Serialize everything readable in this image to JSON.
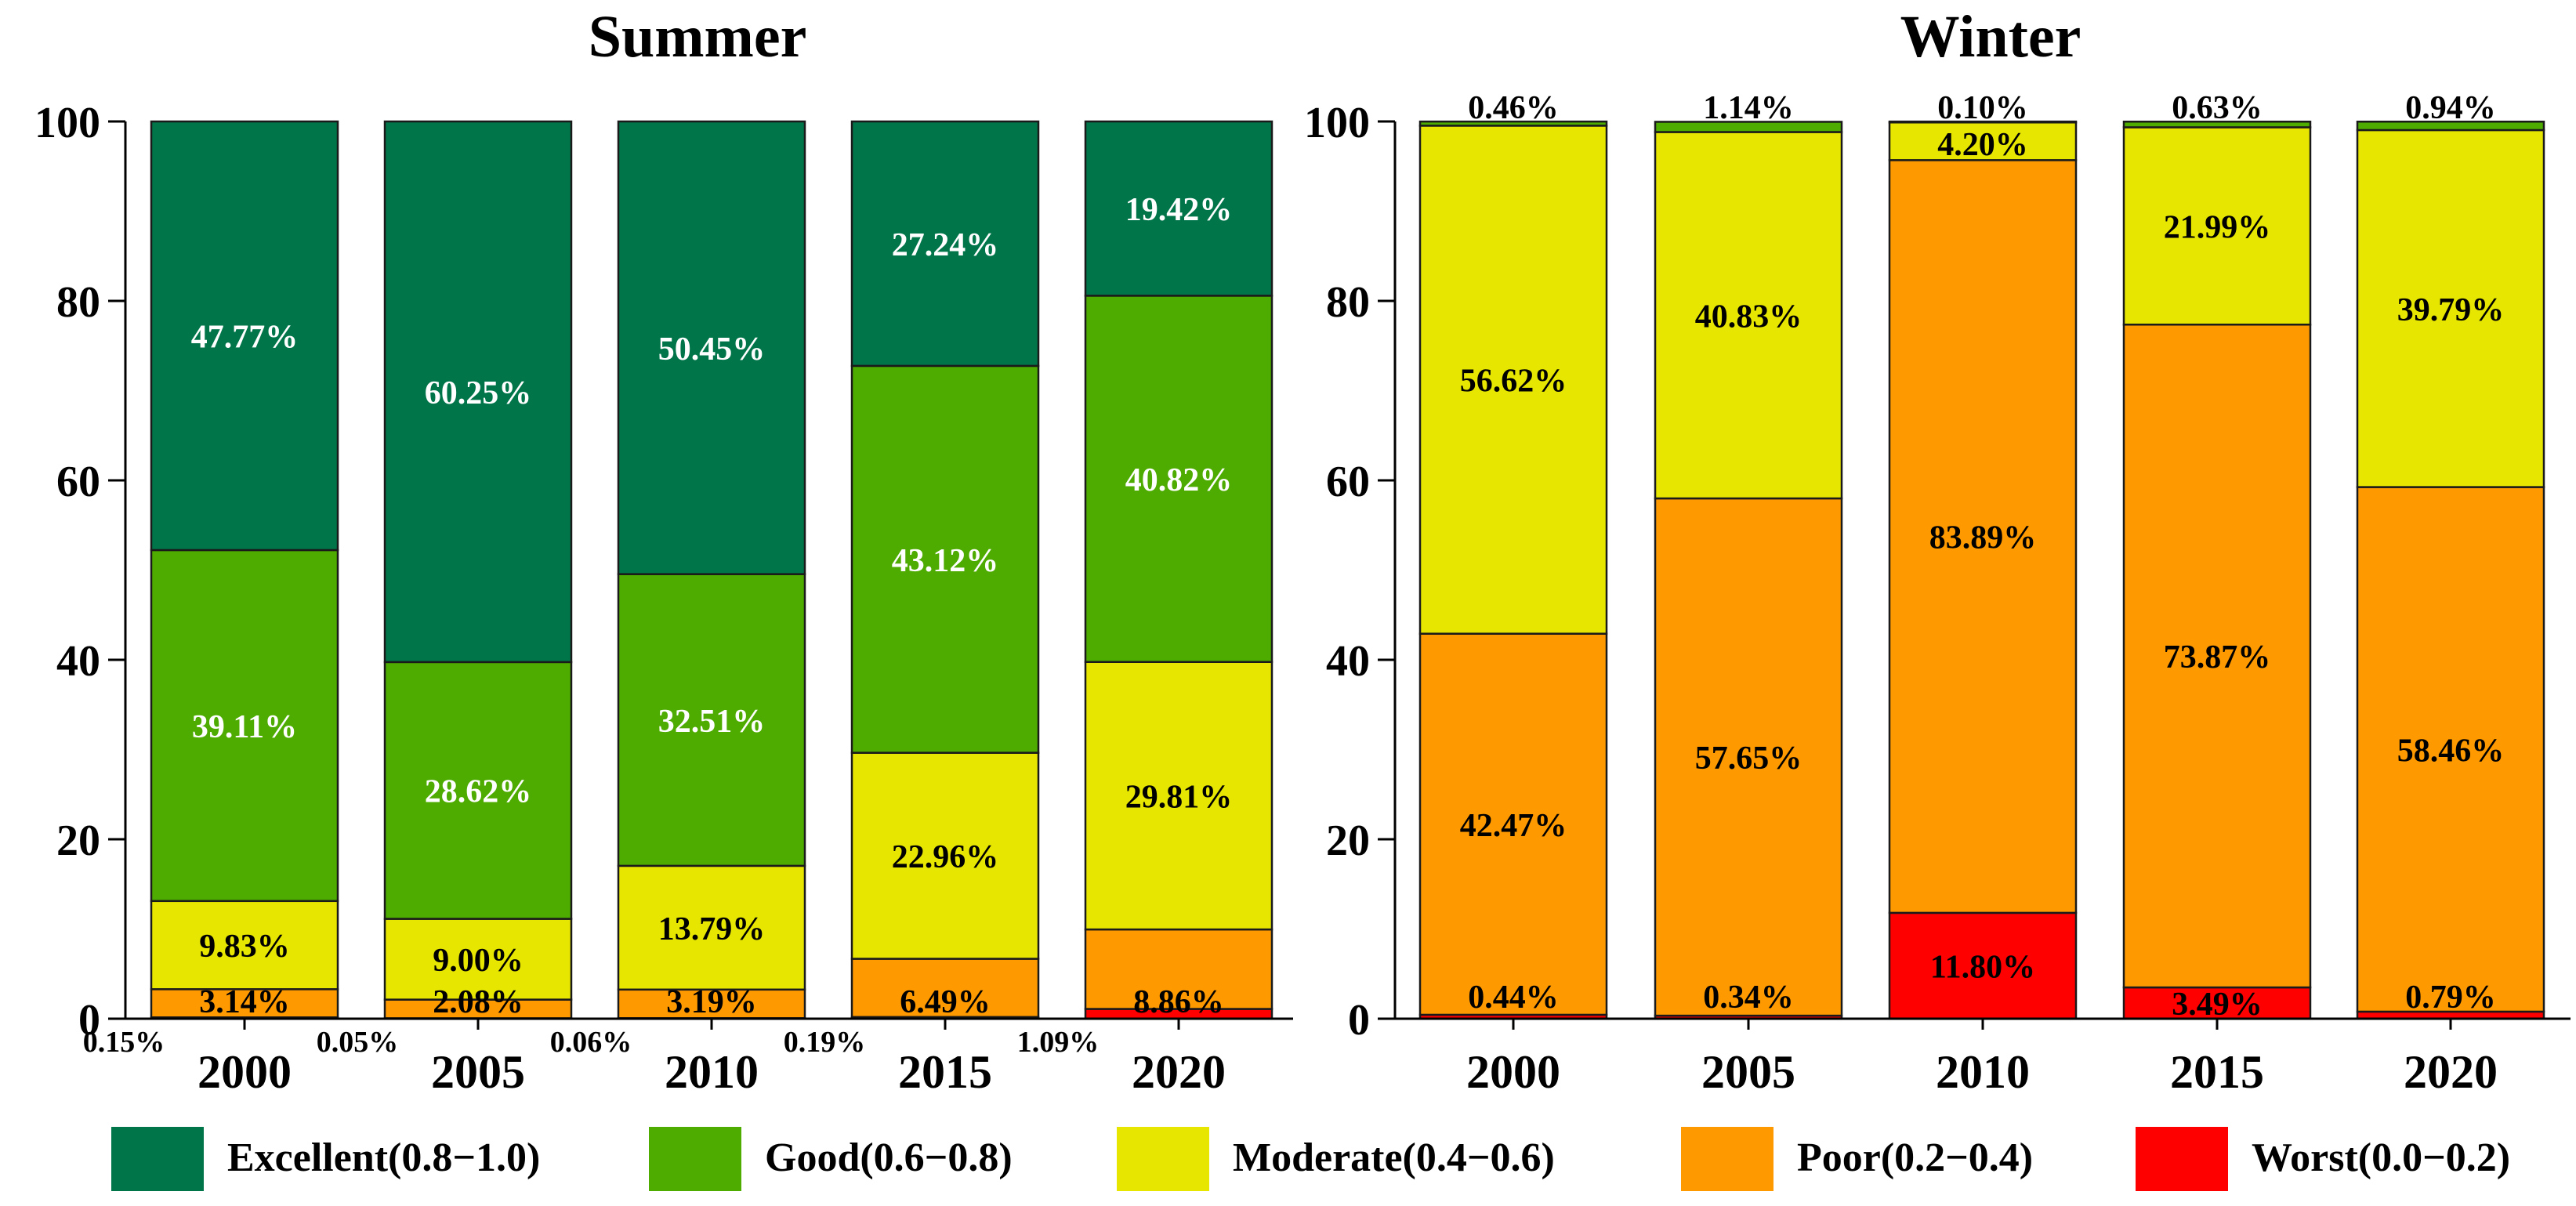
{
  "legend": {
    "position": "bottom",
    "items": [
      {
        "label": "Excellent(0.8−1.0)",
        "color": "#00754a"
      },
      {
        "label": "Good(0.6−0.8)",
        "color": "#4eab00"
      },
      {
        "label": "Moderate(0.4−0.6)",
        "color": "#e6e600"
      },
      {
        "label": "Poor(0.2−0.4)",
        "color": "#ff9900"
      },
      {
        "label": "Worst(0.0−0.2)",
        "color": "#ff0000"
      }
    ]
  },
  "chart_data": [
    {
      "type": "bar",
      "stacked": true,
      "title": "Summer",
      "xlabel": "",
      "ylabel": "",
      "ylim": [
        0,
        100
      ],
      "yticks": [
        "0",
        "20",
        "40",
        "60",
        "80",
        "100"
      ],
      "categories": [
        "2000",
        "2005",
        "2010",
        "2015",
        "2020"
      ],
      "series": [
        {
          "name": "Worst(0.0−0.2)",
          "values": [
            0.15,
            0.05,
            0.06,
            0.19,
            1.09
          ],
          "labels": [
            "0.15%",
            "0.05%",
            "0.06%",
            "0.19%",
            "1.09%"
          ]
        },
        {
          "name": "Poor(0.2−0.4)",
          "values": [
            3.14,
            2.08,
            3.19,
            6.49,
            8.86
          ],
          "labels": [
            "3.14%",
            "2.08%",
            "3.19%",
            "6.49%",
            "8.86%"
          ]
        },
        {
          "name": "Moderate(0.4−0.6)",
          "values": [
            9.83,
            9.0,
            13.79,
            22.96,
            29.81
          ],
          "labels": [
            "9.83%",
            "9.00%",
            "13.79%",
            "22.96%",
            "29.81%"
          ]
        },
        {
          "name": "Good(0.6−0.8)",
          "values": [
            39.11,
            28.62,
            32.51,
            43.12,
            40.82
          ],
          "labels": [
            "39.11%",
            "28.62%",
            "32.51%",
            "43.12%",
            "40.82%"
          ]
        },
        {
          "name": "Excellent(0.8−1.0)",
          "values": [
            47.77,
            60.25,
            50.45,
            27.24,
            19.42
          ],
          "labels": [
            "47.77%",
            "60.25%",
            "50.45%",
            "27.24%",
            "19.42%"
          ]
        }
      ]
    },
    {
      "type": "bar",
      "stacked": true,
      "title": "Winter",
      "xlabel": "",
      "ylabel": "",
      "ylim": [
        0,
        100
      ],
      "yticks": [
        "0",
        "20",
        "40",
        "60",
        "80",
        "100"
      ],
      "categories": [
        "2000",
        "2005",
        "2010",
        "2015",
        "2020"
      ],
      "series": [
        {
          "name": "Worst(0.0−0.2)",
          "values": [
            0.44,
            0.34,
            11.8,
            3.49,
            0.79
          ],
          "labels": [
            "0.44%",
            "0.34%",
            "11.80%",
            "3.49%",
            "0.79%"
          ]
        },
        {
          "name": "Poor(0.2−0.4)",
          "values": [
            42.47,
            57.65,
            83.89,
            73.87,
            58.46
          ],
          "labels": [
            "42.47%",
            "57.65%",
            "83.89%",
            "73.87%",
            "58.46%"
          ]
        },
        {
          "name": "Moderate(0.4−0.6)",
          "values": [
            56.62,
            40.83,
            4.2,
            21.99,
            39.79
          ],
          "labels": [
            "56.62%",
            "40.83%",
            "4.20%",
            "21.99%",
            "39.79%"
          ]
        },
        {
          "name": "Good(0.6−0.8)",
          "values": [
            0.46,
            1.14,
            0.1,
            0.63,
            0.94
          ],
          "labels": [
            "0.46%",
            "1.14%",
            "0.10%",
            "0.63%",
            "0.94%"
          ]
        },
        {
          "name": "Excellent(0.8−1.0)",
          "values": [
            0,
            0,
            0,
            0,
            0
          ],
          "labels": [
            "",
            "",
            "",
            "",
            ""
          ]
        }
      ]
    }
  ]
}
